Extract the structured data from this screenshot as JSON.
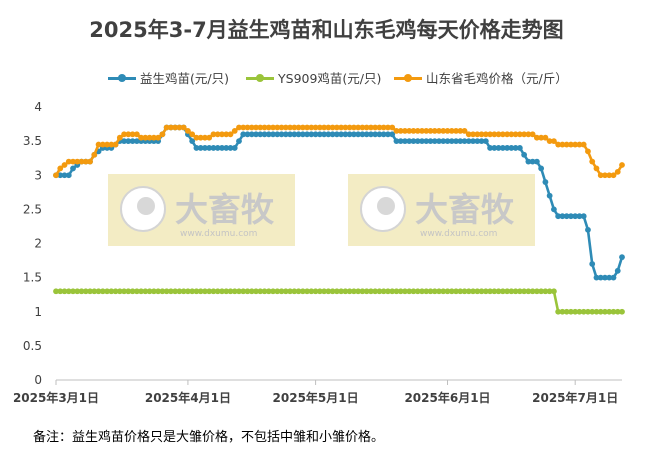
{
  "chart_data": {
    "type": "line",
    "title": "2025年3-7月益生鸡苗和山东毛鸡每天价格走势图",
    "ylim": [
      0,
      4
    ],
    "yticks": [
      0,
      0.5,
      1,
      1.5,
      2,
      2.5,
      3,
      3.5,
      4
    ],
    "ytick_labels": [
      "0",
      "0.5",
      "1",
      "1.5",
      "2",
      "2.5",
      "3",
      "3.5",
      "4"
    ],
    "xrange": [
      "2025-03-01",
      "2025-07-12"
    ],
    "xticks": [
      "2025-03-01",
      "2025-04-01",
      "2025-05-01",
      "2025-06-01",
      "2025-07-01"
    ],
    "xtick_labels": [
      "2025年3月1日",
      "2025年4月1日",
      "2025年5月1日",
      "2025年6月1日",
      "2025年7月1日"
    ],
    "legend_position": "top",
    "series": [
      {
        "name": "益生鸡苗(元/只)",
        "color": "#2e8bb6",
        "points": [
          [
            "2025-03-01",
            3.0
          ],
          [
            "2025-03-04",
            3.0
          ],
          [
            "2025-03-05",
            3.1
          ],
          [
            "2025-03-07",
            3.2
          ],
          [
            "2025-03-09",
            3.2
          ],
          [
            "2025-03-10",
            3.3
          ],
          [
            "2025-03-12",
            3.4
          ],
          [
            "2025-03-14",
            3.4
          ],
          [
            "2025-03-16",
            3.5
          ],
          [
            "2025-03-25",
            3.5
          ],
          [
            "2025-03-26",
            3.6
          ],
          [
            "2025-03-27",
            3.7
          ],
          [
            "2025-03-31",
            3.7
          ],
          [
            "2025-04-01",
            3.6
          ],
          [
            "2025-04-02",
            3.5
          ],
          [
            "2025-04-03",
            3.4
          ],
          [
            "2025-04-12",
            3.4
          ],
          [
            "2025-04-13",
            3.5
          ],
          [
            "2025-04-14",
            3.6
          ],
          [
            "2025-05-19",
            3.6
          ],
          [
            "2025-05-20",
            3.5
          ],
          [
            "2025-06-10",
            3.5
          ],
          [
            "2025-06-11",
            3.4
          ],
          [
            "2025-06-18",
            3.4
          ],
          [
            "2025-06-19",
            3.3
          ],
          [
            "2025-06-20",
            3.2
          ],
          [
            "2025-06-22",
            3.2
          ],
          [
            "2025-06-23",
            3.1
          ],
          [
            "2025-06-24",
            2.9
          ],
          [
            "2025-06-25",
            2.7
          ],
          [
            "2025-06-26",
            2.5
          ],
          [
            "2025-06-27",
            2.4
          ],
          [
            "2025-07-02",
            2.4
          ],
          [
            "2025-07-03",
            2.4
          ],
          [
            "2025-07-04",
            2.2
          ],
          [
            "2025-07-05",
            1.7
          ],
          [
            "2025-07-06",
            1.5
          ],
          [
            "2025-07-10",
            1.5
          ],
          [
            "2025-07-11",
            1.6
          ],
          [
            "2025-07-12",
            1.8
          ]
        ]
      },
      {
        "name": "YS909鸡苗(元/只)",
        "color": "#9ac43a",
        "points": [
          [
            "2025-03-01",
            1.3
          ],
          [
            "2025-06-26",
            1.3
          ],
          [
            "2025-06-27",
            1.0
          ],
          [
            "2025-07-12",
            1.0
          ]
        ]
      },
      {
        "name": "山东省毛鸡价格（元/斤）",
        "color": "#f39a0f",
        "points": [
          [
            "2025-03-01",
            3.0
          ],
          [
            "2025-03-02",
            3.1
          ],
          [
            "2025-03-03",
            3.15
          ],
          [
            "2025-03-04",
            3.2
          ],
          [
            "2025-03-09",
            3.2
          ],
          [
            "2025-03-10",
            3.3
          ],
          [
            "2025-03-11",
            3.45
          ],
          [
            "2025-03-15",
            3.45
          ],
          [
            "2025-03-16",
            3.55
          ],
          [
            "2025-03-17",
            3.6
          ],
          [
            "2025-03-20",
            3.6
          ],
          [
            "2025-03-21",
            3.55
          ],
          [
            "2025-03-25",
            3.55
          ],
          [
            "2025-03-26",
            3.6
          ],
          [
            "2025-03-27",
            3.7
          ],
          [
            "2025-03-31",
            3.7
          ],
          [
            "2025-04-01",
            3.65
          ],
          [
            "2025-04-02",
            3.6
          ],
          [
            "2025-04-03",
            3.55
          ],
          [
            "2025-04-06",
            3.55
          ],
          [
            "2025-04-07",
            3.6
          ],
          [
            "2025-04-11",
            3.6
          ],
          [
            "2025-04-12",
            3.65
          ],
          [
            "2025-04-13",
            3.7
          ],
          [
            "2025-05-18",
            3.7
          ],
          [
            "2025-05-19",
            3.7
          ],
          [
            "2025-05-20",
            3.65
          ],
          [
            "2025-06-05",
            3.65
          ],
          [
            "2025-06-06",
            3.6
          ],
          [
            "2025-06-21",
            3.6
          ],
          [
            "2025-06-22",
            3.55
          ],
          [
            "2025-06-24",
            3.55
          ],
          [
            "2025-06-25",
            3.5
          ],
          [
            "2025-06-26",
            3.5
          ],
          [
            "2025-06-27",
            3.45
          ],
          [
            "2025-07-02",
            3.45
          ],
          [
            "2025-07-03",
            3.45
          ],
          [
            "2025-07-04",
            3.35
          ],
          [
            "2025-07-05",
            3.2
          ],
          [
            "2025-07-06",
            3.1
          ],
          [
            "2025-07-07",
            3.0
          ],
          [
            "2025-07-10",
            3.0
          ],
          [
            "2025-07-11",
            3.05
          ],
          [
            "2025-07-12",
            3.15
          ]
        ]
      }
    ],
    "watermark": {
      "text": "大畜牧",
      "subtext": "www.dxumu.com"
    },
    "note": "备注：益生鸡苗价格只是大雏价格，不包括中雏和小雏价格。"
  }
}
